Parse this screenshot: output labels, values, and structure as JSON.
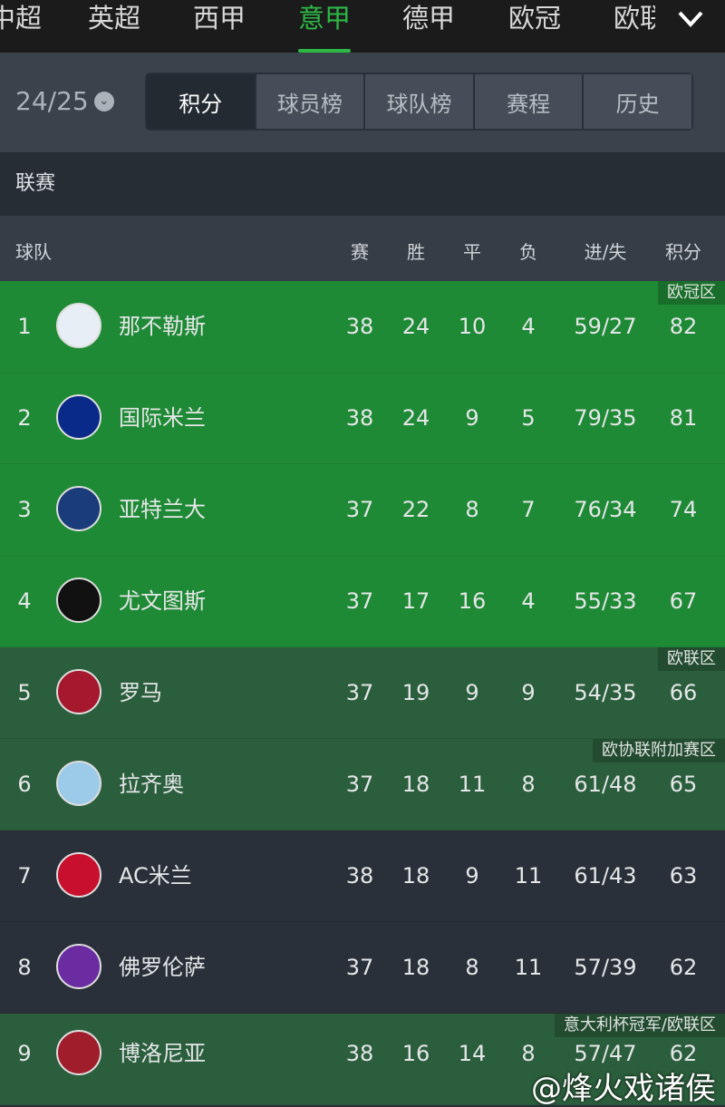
{
  "league_tabs": [
    "中超",
    "英超",
    "西甲",
    "意甲",
    "德甲",
    "欧冠",
    "欧联"
  ],
  "active_league": "意甲",
  "season": "24/25",
  "segments": [
    "积分",
    "球员榜",
    "球队榜",
    "赛程",
    "历史"
  ],
  "active_segment": "积分",
  "section_title": "联赛",
  "columns": {
    "team": "球队",
    "played": "赛",
    "won": "胜",
    "drawn": "平",
    "lost": "负",
    "goals": "进/失",
    "points": "积分"
  },
  "colors": {
    "accent": "#2db846",
    "ucl_zone": "#1f8a35",
    "uel_zone": "#2b5e3c",
    "normal": "#2a3039"
  },
  "rows": [
    {
      "rank": "1",
      "team": "那不勒斯",
      "p": "38",
      "w": "24",
      "d": "10",
      "l": "4",
      "g": "59/27",
      "pts": "82",
      "zone": "欧冠区",
      "logo": "napoli-logo"
    },
    {
      "rank": "2",
      "team": "国际米兰",
      "p": "38",
      "w": "24",
      "d": "9",
      "l": "5",
      "g": "79/35",
      "pts": "81",
      "zone": "",
      "logo": "inter-logo"
    },
    {
      "rank": "3",
      "team": "亚特兰大",
      "p": "37",
      "w": "22",
      "d": "8",
      "l": "7",
      "g": "76/34",
      "pts": "74",
      "zone": "",
      "logo": "atalanta-logo"
    },
    {
      "rank": "4",
      "team": "尤文图斯",
      "p": "37",
      "w": "17",
      "d": "16",
      "l": "4",
      "g": "55/33",
      "pts": "67",
      "zone": "",
      "logo": "juventus-logo"
    },
    {
      "rank": "5",
      "team": "罗马",
      "p": "37",
      "w": "19",
      "d": "9",
      "l": "9",
      "g": "54/35",
      "pts": "66",
      "zone": "欧联区",
      "logo": "roma-logo"
    },
    {
      "rank": "6",
      "team": "拉齐奥",
      "p": "37",
      "w": "18",
      "d": "11",
      "l": "8",
      "g": "61/48",
      "pts": "65",
      "zone": "欧协联附加赛区",
      "logo": "lazio-logo"
    },
    {
      "rank": "7",
      "team": "AC米兰",
      "p": "38",
      "w": "18",
      "d": "9",
      "l": "11",
      "g": "61/43",
      "pts": "63",
      "zone": "",
      "logo": "milan-logo"
    },
    {
      "rank": "8",
      "team": "佛罗伦萨",
      "p": "37",
      "w": "18",
      "d": "8",
      "l": "11",
      "g": "57/39",
      "pts": "62",
      "zone": "",
      "logo": "fiorentina-logo"
    },
    {
      "rank": "9",
      "team": "博洛尼亚",
      "p": "38",
      "w": "16",
      "d": "14",
      "l": "8",
      "g": "57/47",
      "pts": "62",
      "zone": "意大利杯冠军/欧联区",
      "logo": "bologna-logo"
    }
  ],
  "watermark": "@烽火戏诸侯"
}
